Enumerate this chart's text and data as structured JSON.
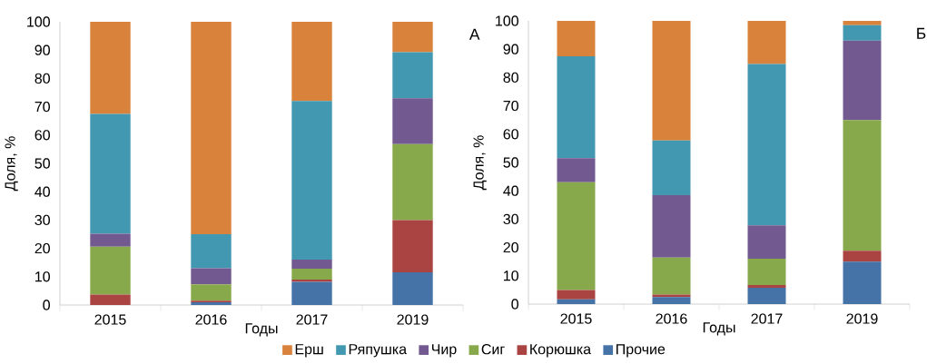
{
  "chart_data": [
    {
      "type": "bar",
      "stacked": true,
      "xlabel": "Годы",
      "ylabel": "Доля, %",
      "categories": [
        "2015",
        "2016",
        "2017",
        "2019"
      ],
      "ylim": [
        0,
        100
      ],
      "yticks": [
        0,
        10,
        20,
        30,
        40,
        50,
        60,
        70,
        80,
        90,
        100
      ],
      "legend": "bottom",
      "annotations": [
        "А"
      ],
      "series": [
        {
          "name": "Прочие",
          "color": "#4572a7",
          "values": [
            0,
            1.0,
            8.2,
            11.5
          ]
        },
        {
          "name": "Корюшка",
          "color": "#a94442",
          "values": [
            3.7,
            0.5,
            0.8,
            18.5
          ]
        },
        {
          "name": "Сиг",
          "color": "#88a94b",
          "values": [
            16.9,
            5.8,
            3.8,
            26.8
          ]
        },
        {
          "name": "Чир",
          "color": "#725a91",
          "values": [
            4.6,
            5.7,
            3.2,
            16.2
          ]
        },
        {
          "name": "Ряпушка",
          "color": "#4298b0",
          "values": [
            42.3,
            12.0,
            56.0,
            16.3
          ]
        },
        {
          "name": "Ерш",
          "color": "#d9823b",
          "values": [
            32.5,
            75.0,
            28.0,
            10.7
          ]
        }
      ]
    },
    {
      "type": "bar",
      "stacked": true,
      "xlabel": "Годы",
      "ylabel": "Доля, %",
      "categories": [
        "2015",
        "2016",
        "2017",
        "2019"
      ],
      "ylim": [
        0,
        100
      ],
      "yticks": [
        0,
        10,
        20,
        30,
        40,
        50,
        60,
        70,
        80,
        90,
        100
      ],
      "annotations": [
        "Б"
      ],
      "series": [
        {
          "color": "#4572a7",
          "values": [
            1.7,
            2.5,
            5.8,
            15.0
          ]
        },
        {
          "color": "#a94442",
          "values": [
            3.3,
            0.9,
            0.9,
            3.8
          ]
        },
        {
          "color": "#88a94b",
          "values": [
            38.0,
            13.0,
            9.3,
            46.2
          ]
        },
        {
          "color": "#725a91",
          "values": [
            8.5,
            22.1,
            11.8,
            28.0
          ]
        },
        {
          "color": "#4298b0",
          "values": [
            36.0,
            19.3,
            57.0,
            5.5
          ]
        },
        {
          "color": "#d9823b",
          "values": [
            12.5,
            42.2,
            15.2,
            1.5
          ]
        }
      ]
    }
  ]
}
